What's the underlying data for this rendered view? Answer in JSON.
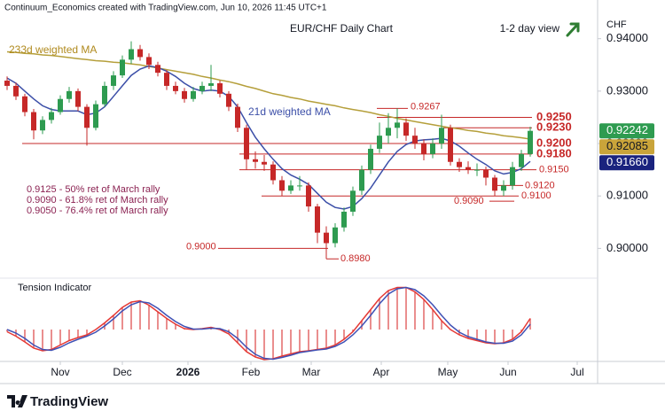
{
  "chart_data": {
    "type": "candlestick",
    "header": "Continuum_Economics created with TradingView.com, Jun 10, 2026 11:45 UTC+1",
    "title": "EUR/CHF Daily Chart",
    "view": "1-2 day view",
    "currency": "CHF",
    "brand": "TradingView",
    "xlim": [
      -0.8,
      66.4
    ],
    "xticks": [
      {
        "value": 6,
        "label": "Nov"
      },
      {
        "value": 13,
        "label": "Dec"
      },
      {
        "value": 20.4,
        "label": "2026"
      },
      {
        "value": 27.5,
        "label": "Feb"
      },
      {
        "value": 34.3,
        "label": "Mar"
      },
      {
        "value": 42.2,
        "label": "Apr"
      },
      {
        "value": 49.7,
        "label": "May"
      },
      {
        "value": 56.5,
        "label": "Jun"
      },
      {
        "value": 64.3,
        "label": "Jul"
      }
    ],
    "ylim": [
      0.895,
      0.944
    ],
    "yticks": [
      {
        "value": 0.9,
        "label": "0.90000"
      },
      {
        "value": 0.91,
        "label": "0.91000"
      },
      {
        "value": 0.92,
        "label": "0.92000"
      },
      {
        "value": 0.93,
        "label": "0.93000"
      },
      {
        "value": 0.94,
        "label": "0.94000"
      }
    ],
    "grid": false,
    "up_color": "#2e9b50",
    "down_color": "#c62828",
    "candles": [
      [
        0.932,
        0.9328,
        0.9302,
        0.931
      ],
      [
        0.931,
        0.9316,
        0.9283,
        0.929
      ],
      [
        0.929,
        0.9295,
        0.9252,
        0.926
      ],
      [
        0.926,
        0.9266,
        0.9208,
        0.9225
      ],
      [
        0.9225,
        0.9252,
        0.9218,
        0.9245
      ],
      [
        0.9245,
        0.9268,
        0.9238,
        0.926
      ],
      [
        0.926,
        0.9292,
        0.9255,
        0.9285
      ],
      [
        0.9285,
        0.9308,
        0.9278,
        0.93
      ],
      [
        0.93,
        0.9305,
        0.9262,
        0.927
      ],
      [
        0.927,
        0.9275,
        0.9196,
        0.923
      ],
      [
        0.923,
        0.9282,
        0.9225,
        0.9275
      ],
      [
        0.9275,
        0.9318,
        0.927,
        0.931
      ],
      [
        0.931,
        0.9338,
        0.9302,
        0.933
      ],
      [
        0.933,
        0.9368,
        0.9325,
        0.936
      ],
      [
        0.936,
        0.9395,
        0.9352,
        0.938
      ],
      [
        0.938,
        0.9388,
        0.9358,
        0.9365
      ],
      [
        0.9365,
        0.9372,
        0.9342,
        0.935
      ],
      [
        0.935,
        0.9356,
        0.9328,
        0.9335
      ],
      [
        0.9335,
        0.934,
        0.9302,
        0.931
      ],
      [
        0.931,
        0.9318,
        0.9294,
        0.93
      ],
      [
        0.93,
        0.9306,
        0.9278,
        0.9285
      ],
      [
        0.9285,
        0.9308,
        0.928,
        0.93
      ],
      [
        0.93,
        0.9318,
        0.9294,
        0.931
      ],
      [
        0.931,
        0.935,
        0.93,
        0.9315
      ],
      [
        0.9315,
        0.932,
        0.9288,
        0.9295
      ],
      [
        0.9295,
        0.93,
        0.9262,
        0.927
      ],
      [
        0.927,
        0.9276,
        0.9222,
        0.923
      ],
      [
        0.923,
        0.9236,
        0.915,
        0.917
      ],
      [
        0.917,
        0.9185,
        0.9152,
        0.9165
      ],
      [
        0.9165,
        0.9178,
        0.9148,
        0.916
      ],
      [
        0.916,
        0.9166,
        0.9122,
        0.913
      ],
      [
        0.913,
        0.9138,
        0.91,
        0.911
      ],
      [
        0.911,
        0.913,
        0.9104,
        0.912
      ],
      [
        0.912,
        0.9138,
        0.911,
        0.912
      ],
      [
        0.912,
        0.9126,
        0.907,
        0.908
      ],
      [
        0.908,
        0.9085,
        0.901,
        0.903
      ],
      [
        0.903,
        0.9042,
        0.898,
        0.901
      ],
      [
        0.901,
        0.9048,
        0.9002,
        0.904
      ],
      [
        0.904,
        0.9078,
        0.9032,
        0.907
      ],
      [
        0.907,
        0.9118,
        0.9062,
        0.911
      ],
      [
        0.911,
        0.9158,
        0.9102,
        0.915
      ],
      [
        0.915,
        0.9198,
        0.9142,
        0.919
      ],
      [
        0.919,
        0.924,
        0.9182,
        0.9215
      ],
      [
        0.9215,
        0.9258,
        0.92,
        0.923
      ],
      [
        0.923,
        0.9267,
        0.921,
        0.924
      ],
      [
        0.924,
        0.9248,
        0.9205,
        0.9215
      ],
      [
        0.9215,
        0.923,
        0.919,
        0.92
      ],
      [
        0.92,
        0.9208,
        0.9168,
        0.918
      ],
      [
        0.918,
        0.921,
        0.9172,
        0.92
      ],
      [
        0.92,
        0.9255,
        0.919,
        0.923
      ],
      [
        0.923,
        0.9236,
        0.9158,
        0.9165
      ],
      [
        0.9165,
        0.9172,
        0.9146,
        0.9155
      ],
      [
        0.9155,
        0.9166,
        0.9142,
        0.915
      ],
      [
        0.915,
        0.9162,
        0.9138,
        0.915
      ],
      [
        0.915,
        0.9156,
        0.912,
        0.9135
      ],
      [
        0.9135,
        0.914,
        0.91,
        0.911
      ],
      [
        0.911,
        0.913,
        0.91,
        0.912
      ],
      [
        0.912,
        0.9165,
        0.9112,
        0.9155
      ],
      [
        0.9155,
        0.9188,
        0.9148,
        0.918
      ],
      [
        0.918,
        0.9232,
        0.9175,
        0.92242
      ]
    ],
    "series": [
      {
        "name": "233d weighted MA",
        "color": "#b59f3b",
        "text_color": "#b08a1e",
        "box_color": "#c9a43a",
        "values": [
          0.9375,
          0.9374,
          0.9372,
          0.9371,
          0.9369,
          0.9368,
          0.9366,
          0.9364,
          0.9362,
          0.936,
          0.9358,
          0.9357,
          0.9355,
          0.9354,
          0.9352,
          0.935,
          0.9347,
          0.9344,
          0.9341,
          0.9338,
          0.9335,
          0.9332,
          0.9328,
          0.9325,
          0.9321,
          0.9318,
          0.9314,
          0.9309,
          0.9305,
          0.93,
          0.9295,
          0.9292,
          0.9288,
          0.9285,
          0.9281,
          0.9278,
          0.9275,
          0.9272,
          0.9268,
          0.9265,
          0.9262,
          0.9259,
          0.9255,
          0.9252,
          0.9248,
          0.9245,
          0.9242,
          0.9239,
          0.9236,
          0.9233,
          0.923,
          0.9228,
          0.9225,
          0.9223,
          0.922,
          0.9218,
          0.9215,
          0.9213,
          0.9211,
          0.92085
        ]
      },
      {
        "name": "21d weighted MA",
        "color": "#3c4fa8",
        "text_color": "#3c4fa8",
        "box_color": "#1a237e",
        "last_label": "0.91660",
        "values": [
          0.9325,
          0.9315,
          0.93,
          0.9285,
          0.9272,
          0.9265,
          0.9262,
          0.9262,
          0.9262,
          0.9255,
          0.9258,
          0.927,
          0.929,
          0.931,
          0.933,
          0.9342,
          0.9348,
          0.9345,
          0.9338,
          0.9328,
          0.9315,
          0.9305,
          0.93,
          0.9302,
          0.93,
          0.929,
          0.927,
          0.924,
          0.9212,
          0.919,
          0.917,
          0.9152,
          0.914,
          0.9132,
          0.9122,
          0.9105,
          0.9088,
          0.9078,
          0.9075,
          0.908,
          0.9095,
          0.9115,
          0.914,
          0.9165,
          0.9185,
          0.9198,
          0.9205,
          0.9207,
          0.9208,
          0.921,
          0.9205,
          0.9195,
          0.9182,
          0.917,
          0.916,
          0.9148,
          0.9142,
          0.9145,
          0.9152,
          0.9166
        ]
      }
    ],
    "levels": [
      {
        "value": 0.9267,
        "label": "0.9267"
      },
      {
        "value": 0.925,
        "label": "0.9250"
      },
      {
        "value": 0.923,
        "label": "0.9230"
      },
      {
        "value": 0.92,
        "label": "0.9200"
      },
      {
        "value": 0.918,
        "label": "0.9180"
      },
      {
        "value": 0.915,
        "label": "0.9150"
      },
      {
        "value": 0.912,
        "label": "0.9120"
      },
      {
        "value": 0.91,
        "label": "0.9100"
      },
      {
        "value": 0.909,
        "label": "0.9090"
      },
      {
        "value": 0.9,
        "label": "0.9000"
      },
      {
        "value": 0.898,
        "label": "0.8980"
      }
    ],
    "level_color": "#c62828",
    "notes": [
      "0.9125 - 50% ret of March rally",
      "0.9090 - 61.8% ret of March rally",
      "0.9050 - 76.4% ret of March rally"
    ],
    "note_color": "#8b2252",
    "tension": {
      "title": "Tension Indicator",
      "ylim": [
        -0.7,
        1.0
      ],
      "hist_color": "#e57373",
      "series": [
        {
          "color": "#e53935",
          "values": [
            -0.05,
            -0.15,
            -0.28,
            -0.42,
            -0.48,
            -0.45,
            -0.35,
            -0.25,
            -0.18,
            -0.12,
            0.0,
            0.15,
            0.32,
            0.5,
            0.62,
            0.65,
            0.55,
            0.4,
            0.25,
            0.12,
            0.02,
            0.0,
            0.02,
            0.05,
            0.0,
            -0.1,
            -0.3,
            -0.5,
            -0.62,
            -0.68,
            -0.66,
            -0.6,
            -0.55,
            -0.5,
            -0.48,
            -0.45,
            -0.42,
            -0.35,
            -0.22,
            -0.05,
            0.2,
            0.45,
            0.7,
            0.88,
            0.95,
            0.95,
            0.85,
            0.68,
            0.45,
            0.2,
            0.0,
            -0.12,
            -0.2,
            -0.25,
            -0.3,
            -0.32,
            -0.3,
            -0.22,
            -0.05,
            0.25
          ]
        },
        {
          "color": "#3f51b5",
          "values": [
            0.0,
            -0.08,
            -0.2,
            -0.35,
            -0.45,
            -0.47,
            -0.4,
            -0.3,
            -0.22,
            -0.15,
            -0.06,
            0.08,
            0.24,
            0.42,
            0.56,
            0.63,
            0.6,
            0.48,
            0.32,
            0.18,
            0.07,
            0.01,
            0.01,
            0.03,
            0.02,
            -0.05,
            -0.2,
            -0.4,
            -0.56,
            -0.65,
            -0.67,
            -0.63,
            -0.58,
            -0.52,
            -0.49,
            -0.46,
            -0.44,
            -0.38,
            -0.28,
            -0.12,
            0.08,
            0.32,
            0.58,
            0.8,
            0.92,
            0.95,
            0.9,
            0.76,
            0.56,
            0.32,
            0.1,
            -0.06,
            -0.16,
            -0.22,
            -0.28,
            -0.31,
            -0.31,
            -0.26,
            -0.12,
            0.12
          ]
        }
      ]
    }
  }
}
